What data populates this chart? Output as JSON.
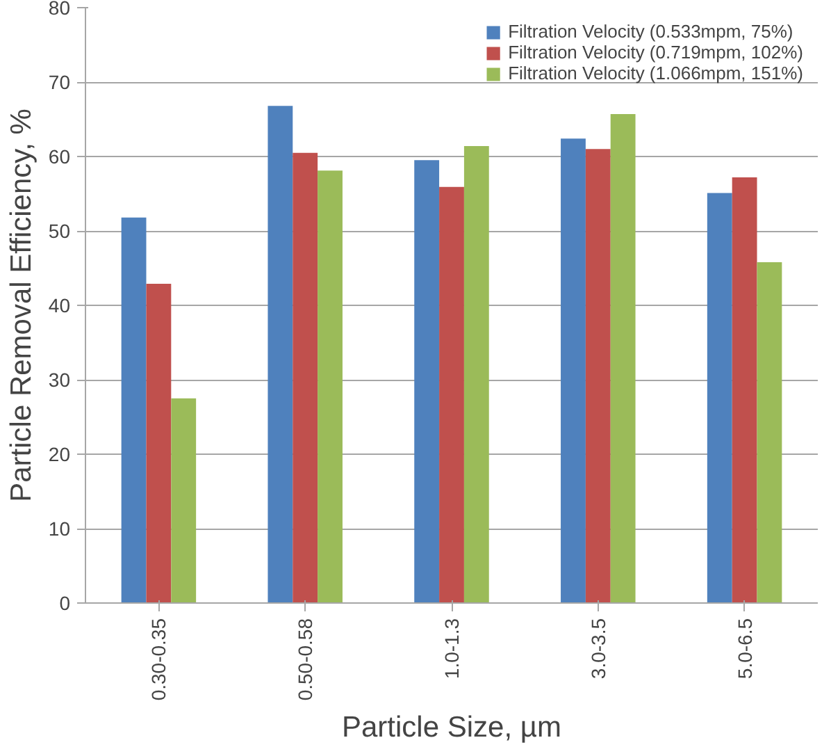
{
  "chart_data": {
    "type": "bar",
    "xlabel": "Particle Size, µm",
    "ylabel": "Particle Removal Efficiency, %",
    "categories": [
      "0.30-0.35",
      "0.50-0.58",
      "1.0-1.3",
      "3.0-3.5",
      "5.0-6.5"
    ],
    "series": [
      {
        "name": "Filtration Velocity (0.533mpm, 75%)",
        "color": "#4f81bd",
        "values": [
          51.8,
          66.8,
          59.5,
          62.4,
          55.1
        ]
      },
      {
        "name": "Filtration Velocity (0.719mpm, 102%)",
        "color": "#c0504d",
        "values": [
          42.9,
          60.5,
          55.9,
          61.0,
          57.2
        ]
      },
      {
        "name": "Filtration Velocity (1.066mpm, 151%)",
        "color": "#9bbb59",
        "values": [
          27.5,
          58.1,
          61.4,
          65.7,
          45.8
        ]
      }
    ],
    "ylim": [
      0,
      80
    ],
    "yticks": [
      0,
      10,
      20,
      30,
      40,
      50,
      60,
      70,
      80
    ],
    "grid": "y",
    "legend": "top right"
  }
}
